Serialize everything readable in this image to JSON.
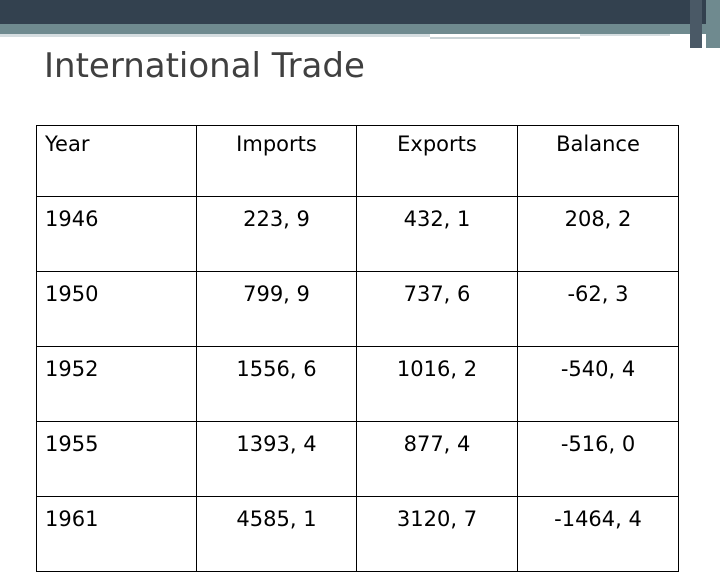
{
  "slide": {
    "title": "International Trade"
  },
  "table": {
    "headers": [
      "Year",
      "Imports",
      "Exports",
      "Balance"
    ],
    "rows": [
      [
        "1946",
        "223, 9",
        "432, 1",
        "208, 2"
      ],
      [
        "1950",
        "799, 9",
        "737, 6",
        "-62, 3"
      ],
      [
        "1952",
        "1556, 6",
        "1016, 2",
        "-540, 4"
      ],
      [
        "1955",
        "1393, 4",
        "877, 4",
        "-516, 0"
      ],
      [
        "1961",
        "4585, 1",
        "3120, 7",
        "-1464, 4"
      ]
    ]
  },
  "colors": {
    "top_bar_dark": "#33414f",
    "top_bar_teal": "#6f8a8f",
    "title_text": "#404040"
  }
}
